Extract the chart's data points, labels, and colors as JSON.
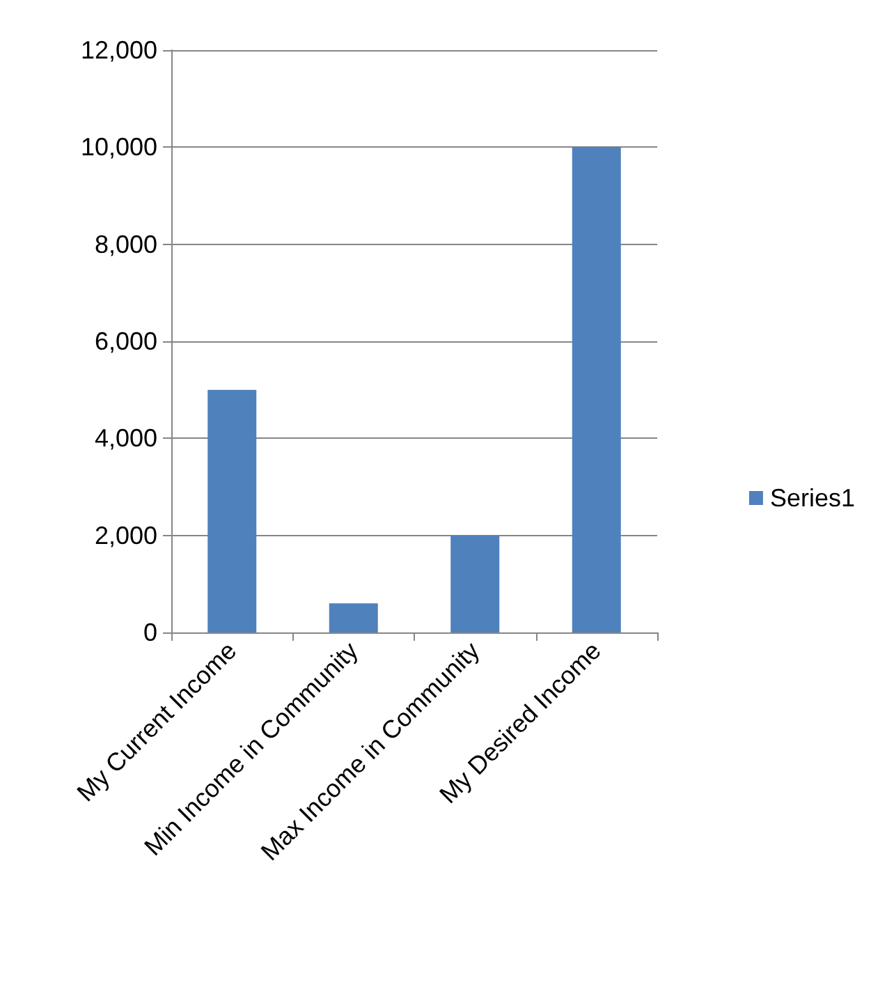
{
  "chart_data": {
    "type": "bar",
    "categories": [
      "My Current Income",
      "Min Income in Community",
      "Max Income in Community",
      "My Desired Income"
    ],
    "series": [
      {
        "name": "Series1",
        "color": "#4f81bd",
        "values": [
          5000,
          600,
          2000,
          10000
        ]
      }
    ],
    "ylim": [
      0,
      12000
    ],
    "yticks": [
      0,
      {
        "value": 2000,
        "label": "2,000"
      },
      {
        "value": 4000,
        "label": "4,000"
      },
      {
        "value": 6000,
        "label": "6,000"
      },
      {
        "value": 8000,
        "label": "8,000"
      },
      {
        "value": 10000,
        "label": "10,000"
      },
      {
        "value": 12000,
        "label": "12,000"
      }
    ],
    "grid": "y",
    "legend": "right"
  }
}
